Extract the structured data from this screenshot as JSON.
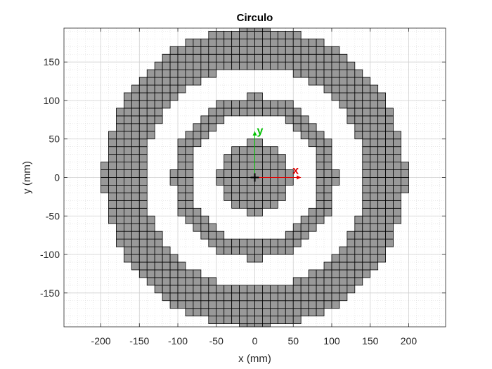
{
  "chart_data": {
    "type": "heatmap",
    "title": "Circulo",
    "xlabel": "x (mm)",
    "ylabel": "y (mm)",
    "xlim": [
      -248,
      248
    ],
    "ylim": [
      -194,
      194
    ],
    "x_ticks": [
      -200,
      -150,
      -100,
      -50,
      0,
      50,
      100,
      150,
      200
    ],
    "y_ticks": [
      -150,
      -100,
      -50,
      0,
      50,
      100,
      150
    ],
    "grid": true,
    "minor_grid": true,
    "cell_size_mm": 10,
    "cell_color": "#999999",
    "cell_edge_color": "#000000",
    "rings": [
      {
        "name": "inner disk",
        "inner_radius_mm": 0,
        "outer_radius_mm": 46
      },
      {
        "name": "middle ring",
        "inner_radius_mm": 84,
        "outer_radius_mm": 106
      },
      {
        "name": "outer ring",
        "inner_radius_mm": 144,
        "outer_radius_mm": 196
      }
    ],
    "origin_frame": {
      "x_label": "x",
      "y_label": "y",
      "x_color": "#e00000",
      "y_color": "#00c000",
      "arrow_length_mm": 60
    }
  }
}
